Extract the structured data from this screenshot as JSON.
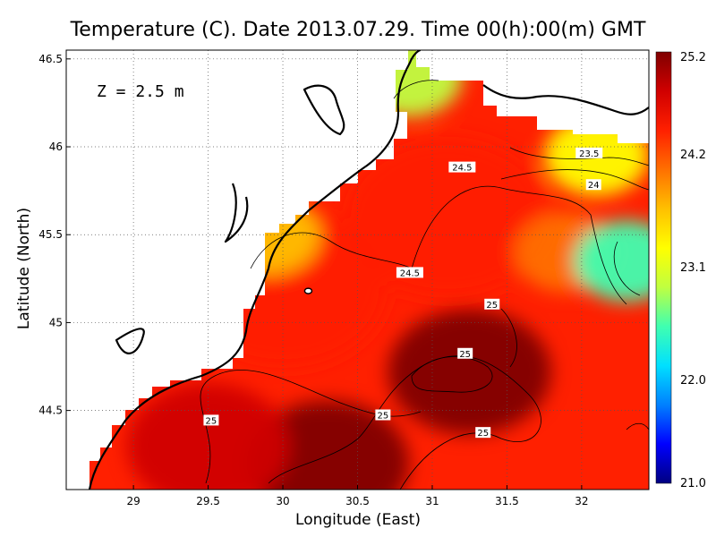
{
  "chart_data": {
    "type": "heatmap",
    "title": "Temperature (C). Date 2013.07.29. Time 00(h):00(m) GMT",
    "xlabel": "Longitude (East)",
    "ylabel": "Latitude (North)",
    "annotation": "Z = 2.5 m",
    "xlim": [
      28.55,
      32.45
    ],
    "ylim": [
      44.05,
      46.55
    ],
    "x_ticks": [
      29,
      29.5,
      30,
      30.5,
      31,
      31.5,
      32
    ],
    "x_tick_labels": [
      "29",
      "29.5",
      "30",
      "30.5",
      "31",
      "31.5",
      "32"
    ],
    "y_ticks": [
      44.5,
      45,
      45.5,
      46,
      46.5
    ],
    "y_tick_labels": [
      "44.5",
      "45",
      "45.5",
      "46",
      "46.5"
    ],
    "grid": true,
    "colorbar": {
      "placement": "right",
      "min": 21.0,
      "max": 25.2,
      "tick_values": [
        25.2,
        24.2,
        23.1,
        22.0,
        21.0
      ],
      "tick_labels": [
        "25.2",
        "24.2",
        "23.1",
        "22.0",
        "21.0"
      ],
      "colors": [
        "#000080",
        "#0000ff",
        "#0080ff",
        "#00e0ff",
        "#40ffb0",
        "#c0ff40",
        "#ffff00",
        "#ffc000",
        "#ff7000",
        "#ff2000",
        "#d00000",
        "#800000"
      ]
    },
    "contour_labels": [
      {
        "text": "24.5",
        "lon": 31.2,
        "lat": 45.88
      },
      {
        "text": "23.5",
        "lon": 32.05,
        "lat": 45.96
      },
      {
        "text": "24",
        "lon": 32.08,
        "lat": 45.78
      },
      {
        "text": "24.5",
        "lon": 30.85,
        "lat": 45.28
      },
      {
        "text": "25",
        "lon": 31.4,
        "lat": 45.1
      },
      {
        "text": "25",
        "lon": 31.22,
        "lat": 44.82
      },
      {
        "text": "25",
        "lon": 30.67,
        "lat": 44.47
      },
      {
        "text": "25",
        "lon": 31.34,
        "lat": 44.37
      },
      {
        "text": "25",
        "lon": 29.52,
        "lat": 44.44
      }
    ],
    "field_samples": [
      {
        "lon": 30.3,
        "lat": 44.2,
        "value": 25.2
      },
      {
        "lon": 31.25,
        "lat": 44.72,
        "value": 25.1
      },
      {
        "lon": 29.5,
        "lat": 44.3,
        "value": 25.0
      },
      {
        "lon": 30.0,
        "lat": 45.2,
        "value": 24.6
      },
      {
        "lon": 31.1,
        "lat": 45.6,
        "value": 24.6
      },
      {
        "lon": 31.9,
        "lat": 45.4,
        "value": 24.2
      },
      {
        "lon": 32.3,
        "lat": 45.35,
        "value": 22.5
      },
      {
        "lon": 32.1,
        "lat": 45.95,
        "value": 23.4
      },
      {
        "lon": 30.85,
        "lat": 46.4,
        "value": 22.8
      },
      {
        "lon": 29.9,
        "lat": 45.5,
        "value": 23.6
      }
    ]
  }
}
